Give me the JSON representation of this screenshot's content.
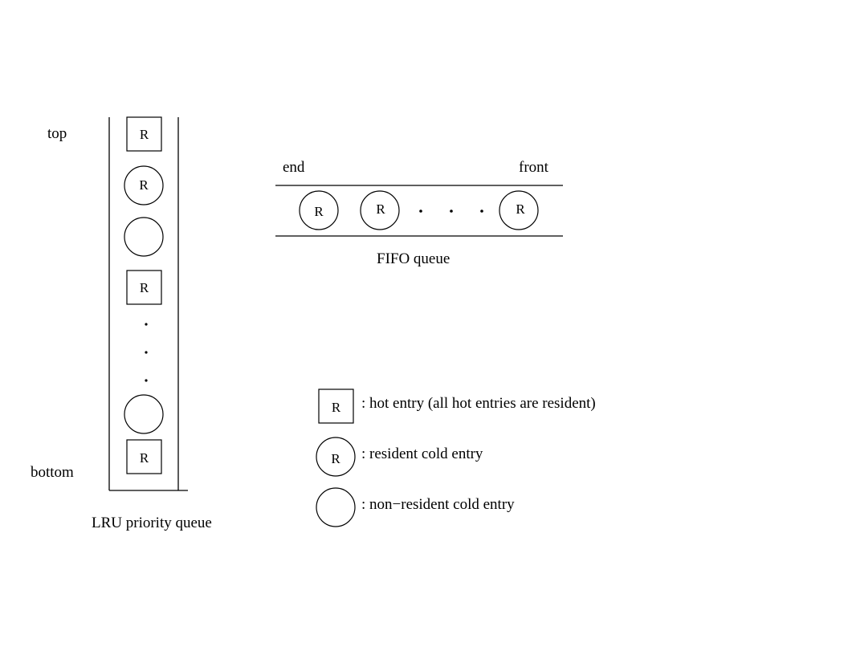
{
  "lru": {
    "top_label": "top",
    "bottom_label": "bottom",
    "caption": "LRU priority queue",
    "r": "R",
    "dots": "."
  },
  "fifo": {
    "end_label": "end",
    "front_label": "front",
    "caption": "FIFO queue",
    "r": "R",
    "dots": "."
  },
  "legend": {
    "hot_symbol": "R",
    "hot_text": ": hot entry (all hot entries are resident)",
    "resident_symbol": "R",
    "resident_text": ": resident cold entry",
    "nonresident_text": ": non−resident cold entry"
  }
}
